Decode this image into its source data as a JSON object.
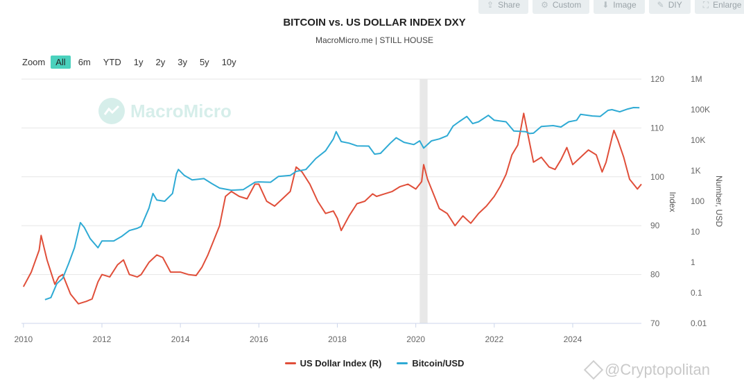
{
  "toolbar": {
    "buttons": [
      {
        "label": "Share",
        "icon": "share-icon"
      },
      {
        "label": "Custom",
        "icon": "gear-icon"
      },
      {
        "label": "Image",
        "icon": "download-icon"
      },
      {
        "label": "DIY",
        "icon": "pencil-icon"
      },
      {
        "label": "Enlarge",
        "icon": "expand-icon"
      }
    ]
  },
  "header": {
    "title": "BITCOIN vs. US DOLLAR INDEX DXY",
    "subtitle": "MacroMicro.me | STILL HOUSE"
  },
  "zoom": {
    "label": "Zoom",
    "options": [
      "All",
      "6m",
      "YTD",
      "1y",
      "2y",
      "3y",
      "5y",
      "10y"
    ],
    "selected": "All"
  },
  "watermark": {
    "text": "MacroMicro"
  },
  "credit": {
    "text": "@Cryptopolitan"
  },
  "chart_data": {
    "type": "line",
    "title": "BITCOIN vs. US DOLLAR INDEX DXY",
    "subtitle": "MacroMicro.me | STILL HOUSE",
    "x_ticks": [
      "2010",
      "2012",
      "2014",
      "2016",
      "2018",
      "2020",
      "2022",
      "2024"
    ],
    "x_range": [
      2009.95,
      2025.75
    ],
    "y_left": {
      "label": "Index",
      "range": [
        70,
        120
      ],
      "ticks": [
        "70",
        "80",
        "90",
        "100",
        "110",
        "120"
      ]
    },
    "y_right": {
      "label": "Number, USD",
      "scale": "log",
      "range": [
        0.01,
        1000000
      ],
      "ticks": [
        "0.01",
        "0.1",
        "1",
        "10",
        "100",
        "1K",
        "10K",
        "100K",
        "1M"
      ]
    },
    "shaded_region": [
      2020.1,
      2020.3
    ],
    "legend_placement": "bottom-center",
    "series": [
      {
        "name": "US Dollar Index (R)",
        "color": "#e04e39",
        "axis": "left",
        "points": [
          [
            2010.0,
            77.5
          ],
          [
            2010.2,
            80.5
          ],
          [
            2010.4,
            85.0
          ],
          [
            2010.45,
            88.0
          ],
          [
            2010.6,
            83.0
          ],
          [
            2010.8,
            78.0
          ],
          [
            2010.9,
            79.5
          ],
          [
            2011.0,
            80.0
          ],
          [
            2011.2,
            76.0
          ],
          [
            2011.4,
            74.0
          ],
          [
            2011.6,
            74.5
          ],
          [
            2011.75,
            75.0
          ],
          [
            2011.9,
            78.5
          ],
          [
            2012.0,
            80.0
          ],
          [
            2012.2,
            79.5
          ],
          [
            2012.4,
            82.0
          ],
          [
            2012.55,
            83.0
          ],
          [
            2012.7,
            80.0
          ],
          [
            2012.9,
            79.5
          ],
          [
            2013.0,
            80.0
          ],
          [
            2013.2,
            82.5
          ],
          [
            2013.4,
            84.0
          ],
          [
            2013.55,
            83.5
          ],
          [
            2013.75,
            80.5
          ],
          [
            2014.0,
            80.5
          ],
          [
            2014.2,
            80.0
          ],
          [
            2014.4,
            79.8
          ],
          [
            2014.55,
            81.5
          ],
          [
            2014.7,
            84.0
          ],
          [
            2014.85,
            87.0
          ],
          [
            2015.0,
            90.0
          ],
          [
            2015.15,
            96.0
          ],
          [
            2015.3,
            97.0
          ],
          [
            2015.5,
            96.0
          ],
          [
            2015.7,
            95.5
          ],
          [
            2015.9,
            98.5
          ],
          [
            2016.0,
            98.5
          ],
          [
            2016.2,
            95.0
          ],
          [
            2016.4,
            94.0
          ],
          [
            2016.6,
            95.5
          ],
          [
            2016.8,
            97.0
          ],
          [
            2016.95,
            102.0
          ],
          [
            2017.1,
            101.0
          ],
          [
            2017.3,
            98.5
          ],
          [
            2017.5,
            95.0
          ],
          [
            2017.7,
            92.5
          ],
          [
            2017.9,
            93.0
          ],
          [
            2018.0,
            91.5
          ],
          [
            2018.1,
            89.0
          ],
          [
            2018.3,
            92.0
          ],
          [
            2018.5,
            94.5
          ],
          [
            2018.7,
            95.0
          ],
          [
            2018.9,
            96.5
          ],
          [
            2019.0,
            96.0
          ],
          [
            2019.2,
            96.5
          ],
          [
            2019.4,
            97.0
          ],
          [
            2019.6,
            98.0
          ],
          [
            2019.8,
            98.5
          ],
          [
            2020.0,
            97.5
          ],
          [
            2020.15,
            99.0
          ],
          [
            2020.2,
            102.5
          ],
          [
            2020.3,
            99.5
          ],
          [
            2020.45,
            96.5
          ],
          [
            2020.6,
            93.5
          ],
          [
            2020.8,
            92.5
          ],
          [
            2021.0,
            90.0
          ],
          [
            2021.2,
            92.0
          ],
          [
            2021.4,
            90.5
          ],
          [
            2021.6,
            92.5
          ],
          [
            2021.8,
            94.0
          ],
          [
            2022.0,
            96.0
          ],
          [
            2022.15,
            98.0
          ],
          [
            2022.3,
            100.5
          ],
          [
            2022.45,
            104.5
          ],
          [
            2022.6,
            106.5
          ],
          [
            2022.75,
            113.0
          ],
          [
            2022.9,
            107.0
          ],
          [
            2023.0,
            103.0
          ],
          [
            2023.2,
            104.0
          ],
          [
            2023.4,
            102.0
          ],
          [
            2023.55,
            101.5
          ],
          [
            2023.7,
            103.5
          ],
          [
            2023.85,
            106.0
          ],
          [
            2024.0,
            102.5
          ],
          [
            2024.2,
            104.0
          ],
          [
            2024.4,
            105.5
          ],
          [
            2024.6,
            104.5
          ],
          [
            2024.75,
            101.0
          ],
          [
            2024.85,
            103.0
          ],
          [
            2025.0,
            108.0
          ],
          [
            2025.05,
            109.5
          ],
          [
            2025.15,
            107.5
          ],
          [
            2025.3,
            104.0
          ],
          [
            2025.45,
            99.5
          ],
          [
            2025.55,
            98.5
          ],
          [
            2025.65,
            97.5
          ],
          [
            2025.75,
            98.5
          ]
        ]
      },
      {
        "name": "Bitcoin/USD",
        "color": "#2eaad4",
        "axis": "right",
        "points": [
          [
            2010.55,
            0.06
          ],
          [
            2010.7,
            0.07
          ],
          [
            2010.85,
            0.2
          ],
          [
            2011.0,
            0.3
          ],
          [
            2011.15,
            0.9
          ],
          [
            2011.3,
            3.0
          ],
          [
            2011.45,
            20.0
          ],
          [
            2011.55,
            14.0
          ],
          [
            2011.7,
            6.0
          ],
          [
            2011.9,
            3.0
          ],
          [
            2012.0,
            5.0
          ],
          [
            2012.3,
            5.0
          ],
          [
            2012.5,
            7.0
          ],
          [
            2012.7,
            11.0
          ],
          [
            2012.9,
            13.0
          ],
          [
            2013.0,
            15.0
          ],
          [
            2013.2,
            60.0
          ],
          [
            2013.3,
            180.0
          ],
          [
            2013.4,
            110.0
          ],
          [
            2013.6,
            100.0
          ],
          [
            2013.8,
            180.0
          ],
          [
            2013.9,
            800.0
          ],
          [
            2013.95,
            1100.0
          ],
          [
            2014.1,
            700.0
          ],
          [
            2014.3,
            500.0
          ],
          [
            2014.6,
            550.0
          ],
          [
            2014.8,
            380.0
          ],
          [
            2015.0,
            270.0
          ],
          [
            2015.3,
            230.0
          ],
          [
            2015.6,
            240.0
          ],
          [
            2015.9,
            420.0
          ],
          [
            2016.0,
            430.0
          ],
          [
            2016.3,
            420.0
          ],
          [
            2016.5,
            650.0
          ],
          [
            2016.8,
            700.0
          ],
          [
            2016.95,
            950.0
          ],
          [
            2017.2,
            1100.0
          ],
          [
            2017.45,
            2500.0
          ],
          [
            2017.7,
            4500.0
          ],
          [
            2017.9,
            11000.0
          ],
          [
            2017.97,
            19000.0
          ],
          [
            2018.1,
            9000.0
          ],
          [
            2018.3,
            8000.0
          ],
          [
            2018.5,
            6500.0
          ],
          [
            2018.8,
            6400.0
          ],
          [
            2018.95,
            3500.0
          ],
          [
            2019.1,
            3700.0
          ],
          [
            2019.35,
            8000.0
          ],
          [
            2019.5,
            12000.0
          ],
          [
            2019.7,
            8500.0
          ],
          [
            2019.95,
            7200.0
          ],
          [
            2020.1,
            9500.0
          ],
          [
            2020.2,
            5500.0
          ],
          [
            2020.4,
            9500.0
          ],
          [
            2020.6,
            11000.0
          ],
          [
            2020.8,
            14000.0
          ],
          [
            2020.95,
            29000.0
          ],
          [
            2021.1,
            40000.0
          ],
          [
            2021.3,
            60000.0
          ],
          [
            2021.45,
            35000.0
          ],
          [
            2021.6,
            40000.0
          ],
          [
            2021.85,
            65000.0
          ],
          [
            2022.0,
            45000.0
          ],
          [
            2022.3,
            40000.0
          ],
          [
            2022.5,
            20000.0
          ],
          [
            2022.8,
            19000.0
          ],
          [
            2022.9,
            16500.0
          ],
          [
            2023.0,
            17000.0
          ],
          [
            2023.2,
            28000.0
          ],
          [
            2023.5,
            30000.0
          ],
          [
            2023.7,
            27000.0
          ],
          [
            2023.9,
            40000.0
          ],
          [
            2024.1,
            45000.0
          ],
          [
            2024.2,
            70000.0
          ],
          [
            2024.5,
            62000.0
          ],
          [
            2024.7,
            60000.0
          ],
          [
            2024.9,
            95000.0
          ],
          [
            2025.0,
            100000.0
          ],
          [
            2025.2,
            85000.0
          ],
          [
            2025.4,
            105000.0
          ],
          [
            2025.55,
            117000.0
          ],
          [
            2025.7,
            115000.0
          ]
        ]
      }
    ]
  }
}
